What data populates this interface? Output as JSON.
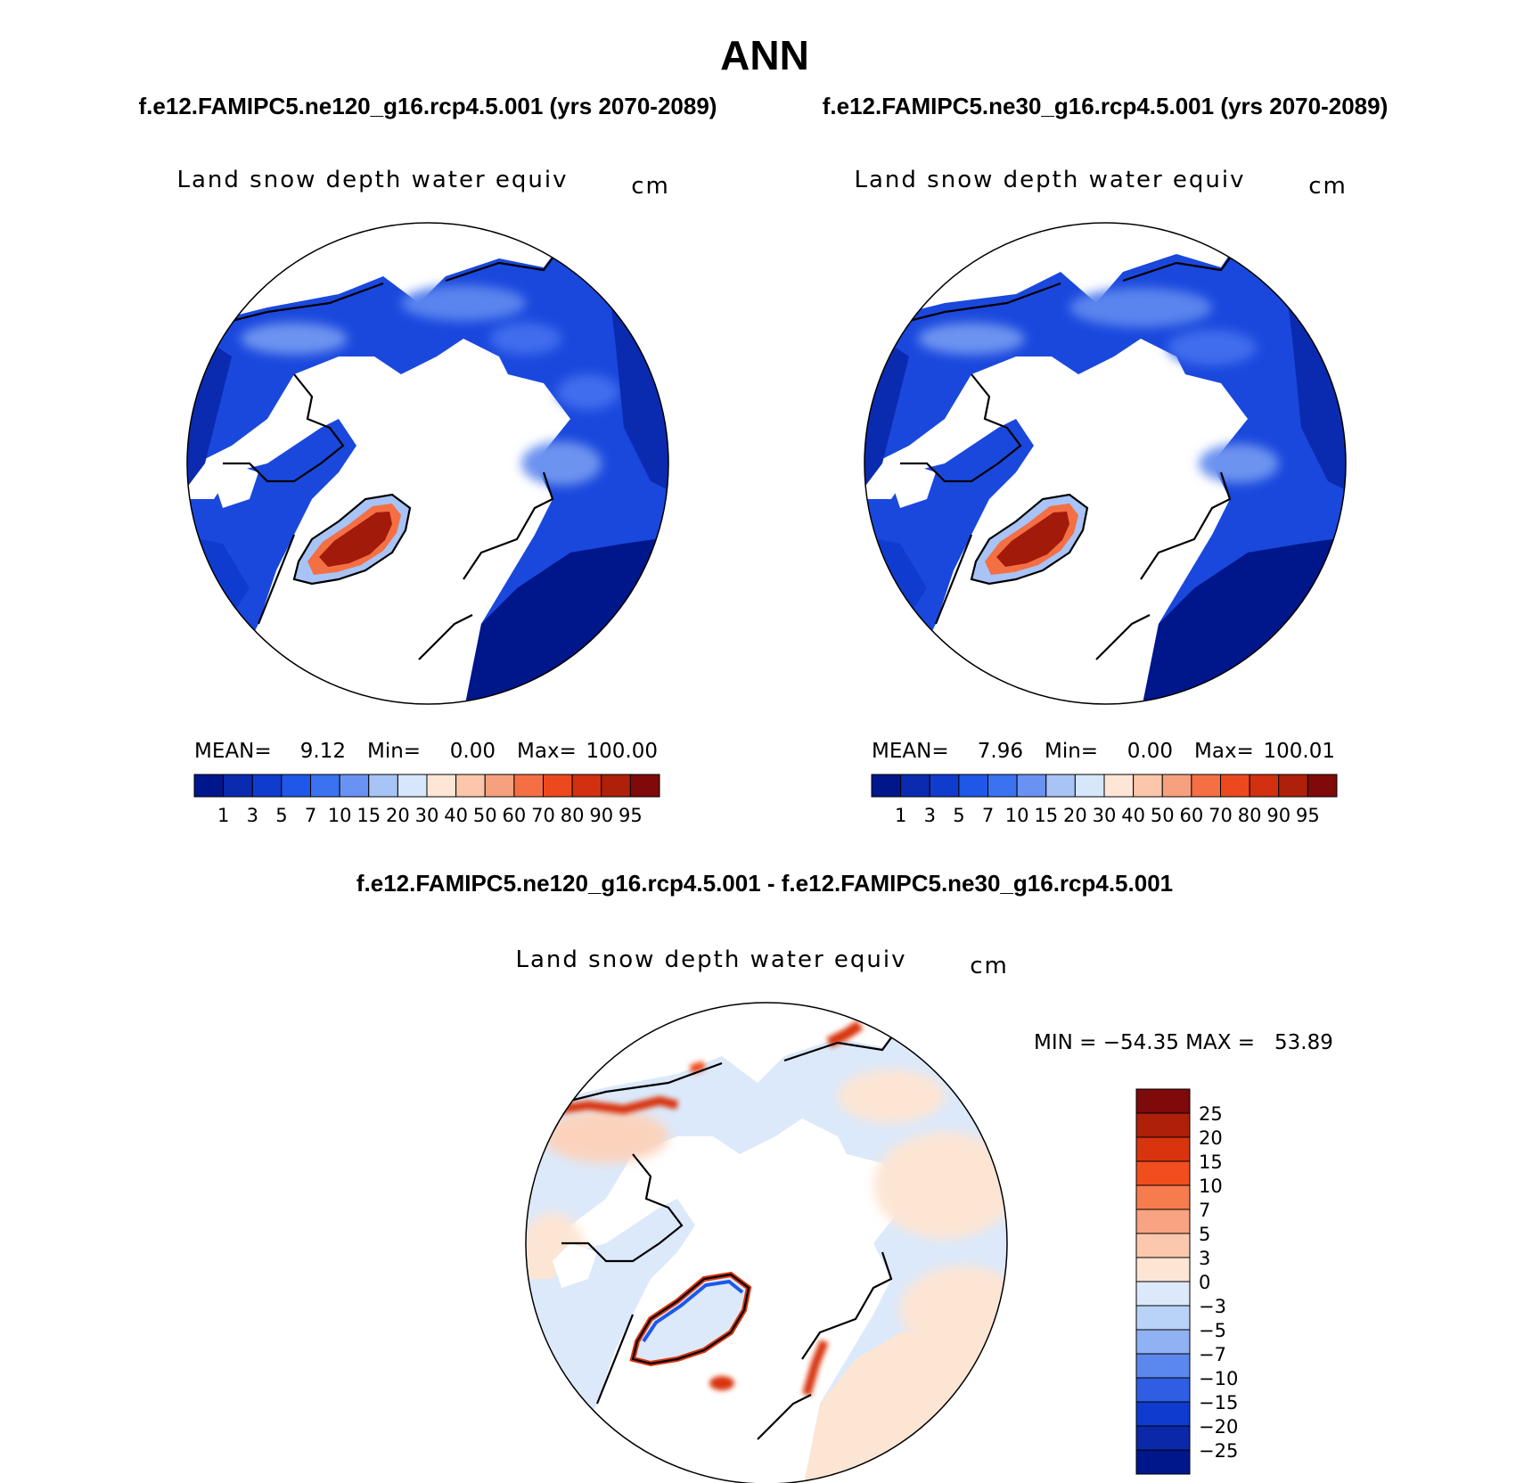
{
  "title": "ANN",
  "panels": [
    {
      "case_label": "f.e12.FAMIPC5.ne120_g16.rcp4.5.001 (yrs 2070-2089)",
      "variable": "Land snow depth water equiv",
      "units": "cm",
      "stats": {
        "mean_label": "MEAN=",
        "mean": "9.12",
        "min_label": "Min=",
        "min": "0.00",
        "max_label": "Max=",
        "max": "100.00"
      }
    },
    {
      "case_label": "f.e12.FAMIPC5.ne30_g16.rcp4.5.001 (yrs 2070-2089)",
      "variable": "Land snow depth water equiv",
      "units": "cm",
      "stats": {
        "mean_label": "MEAN=",
        "mean": "7.96",
        "min_label": "Min=",
        "min": "0.00",
        "max_label": "Max=",
        "max": "100.01"
      }
    }
  ],
  "abs_colorbar": {
    "colors": [
      "#00168b",
      "#0a2bb0",
      "#0f3ccf",
      "#1f58e8",
      "#3a72f0",
      "#6a92f2",
      "#a8c3f6",
      "#d6e6fb",
      "#fde6d6",
      "#fbc6aa",
      "#f7a07d",
      "#f46f43",
      "#ec4a1e",
      "#d23010",
      "#ae200a",
      "#7e0a0a"
    ],
    "labels": [
      "1",
      "3",
      "5",
      "7",
      "10",
      "15",
      "20",
      "30",
      "40",
      "50",
      "60",
      "70",
      "80",
      "90",
      "95"
    ]
  },
  "diff_panel": {
    "header": "f.e12.FAMIPC5.ne120_g16.rcp4.5.001 - f.e12.FAMIPC5.ne30_g16.rcp4.5.001",
    "variable": "Land snow depth water equiv",
    "units": "cm",
    "stats": "MIN = −54.35 MAX =   53.89",
    "colorbar": {
      "colors": [
        "#7e0a0a",
        "#ae200a",
        "#d8340e",
        "#f04e1f",
        "#f67c4e",
        "#f9a382",
        "#fbc8ae",
        "#fde5d4",
        "#dce9fa",
        "#b8d2f8",
        "#8eb2f3",
        "#5a88ec",
        "#2f5ee4",
        "#0f3ccf",
        "#0a28a8",
        "#00168b"
      ],
      "labels": [
        "25",
        "20",
        "15",
        "10",
        "7",
        "5",
        "3",
        "0",
        "−3",
        "−5",
        "−7",
        "−10",
        "−15",
        "−20",
        "−25"
      ]
    }
  }
}
